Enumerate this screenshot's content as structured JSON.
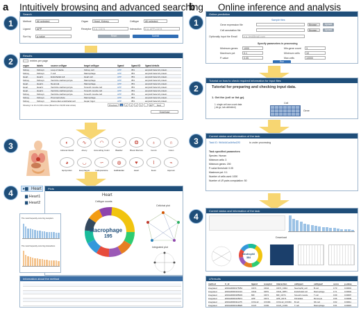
{
  "panels": {
    "a": {
      "letter": "a",
      "title": "Intuitively browsing and advanced searching"
    },
    "b": {
      "letter": "b",
      "title": "Online inference and analysis"
    }
  },
  "steps": [
    "1",
    "2",
    "3",
    "4"
  ],
  "colors": {
    "accent": "#1f4e79",
    "arrow": "#f7d672",
    "bars_blue": "#9cc2e5",
    "bars_orange": "#f4c38d",
    "submit": "#2f6db5"
  },
  "search": {
    "title": "Search",
    "fields": [
      {
        "label": "Method",
        "value": "All selected"
      },
      {
        "label": "Organ",
        "value": "Heart, Kidney"
      },
      {
        "label": "Celltype",
        "value": "All selected"
      },
      {
        "label": "Ligand",
        "value": "APP"
      },
      {
        "label": "Receptor",
        "value": "e.g. CD74"
      },
      {
        "label": "Interaction",
        "value": "e.g. APP-CD74"
      },
      {
        "label": "Sort by",
        "value": "p-value"
      }
    ],
    "reset_label": "Reset",
    "submit_label": "Submit"
  },
  "results": {
    "title": "Results",
    "entries_label": "entries per page",
    "headers": [
      "organ",
      "labels",
      "source celltype",
      "target celltype",
      "ligand",
      "ligand ID",
      "ligand details"
    ],
    "rows": [
      [
        "Kidney",
        "Kidney1",
        "Loop of Henle",
        "Kidney cell",
        "APP",
        "351",
        "amyloid beta A4 protein"
      ],
      [
        "Kidney",
        "Kidney1",
        "T cell",
        "Macrophage",
        "APP",
        "351",
        "amyloid beta A4 protein"
      ],
      [
        "Heart",
        "Heart1",
        "Endothelial cell",
        "Heart cell",
        "APP",
        "351",
        "amyloid beta A4 protein"
      ],
      [
        "Kidney",
        "Kidney1",
        "Ventricle cardiomyocyte",
        "Macrophage",
        "APP",
        "351",
        "amyloid beta A4 protein"
      ],
      [
        "Heart",
        "Heart1",
        "Neuronal",
        "Macrophage",
        "APP",
        "351",
        "amyloid beta A4 protein"
      ],
      [
        "Heart",
        "Heart1",
        "Ventricle cardiomyocyte",
        "Smooth muscle cell",
        "APP",
        "351",
        "amyloid beta A4 protein"
      ],
      [
        "Heart",
        "Heart1",
        "Ventricle cardiomyocyte",
        "Smooth muscle cell",
        "APP",
        "351",
        "amyloid beta A4 protein"
      ],
      [
        "Kidney",
        "Kidney1",
        "Ventricle cardiomyocyte",
        "Smooth muscle cell",
        "APP",
        "351",
        "amyloid beta A4 protein"
      ],
      [
        "Kidney",
        "Kidney1",
        "Proximal tubule",
        "Macrophage",
        "APP",
        "351",
        "amyloid beta A4 protein"
      ],
      [
        "Kidney",
        "Kidney1",
        "Glomerular endothelial cell",
        "Hepar Ingot",
        "APP",
        "351",
        "amyloid beta A4 protein"
      ]
    ],
    "footer": "Showing 1 to 10 of 2,016 entries (filtered from 19,000 total entries)",
    "pages": [
      "Previous",
      "1",
      "2",
      "3",
      "4",
      "5",
      "...",
      "46",
      "Next"
    ],
    "download_label": "Download"
  },
  "organs": [
    {
      "name": "Adrenal Gland",
      "icon": "◐"
    },
    {
      "name": "Artery",
      "icon": "∿"
    },
    {
      "name": "Ascending Colon",
      "icon": "◠"
    },
    {
      "name": "Bladder",
      "icon": "◔"
    },
    {
      "name": "Blood Marrow",
      "icon": "❂"
    },
    {
      "name": "Cervix",
      "icon": "♁"
    },
    {
      "name": "Colon",
      "icon": "∩"
    },
    {
      "name": "Epityrotian",
      "icon": "◕"
    },
    {
      "name": "Esophagus",
      "icon": "◡"
    },
    {
      "name": "Fallopiantube",
      "icon": "∽"
    },
    {
      "name": "Gallbladder",
      "icon": "◍"
    },
    {
      "name": "Heart",
      "icon": "♥"
    },
    {
      "name": "Ileum",
      "icon": "⌇"
    },
    {
      "name": "Jejunum",
      "icon": "⌁"
    }
  ],
  "tree": {
    "root": "Heart",
    "children": [
      "Heart1",
      "Heart2"
    ]
  },
  "plots": {
    "title": "Plots",
    "heading": "Heart",
    "donut_title": "Celltype counts",
    "donut_center": "Macrophage",
    "donut_value": "195",
    "cellchat_title": "Cellchat plot",
    "integrated_title": "Integrated plot",
    "bar1_title": "The most frequently occurring receptors",
    "bar2_title": "The most frequently occurring interactions",
    "bar1": [
      58,
      46,
      40,
      38,
      35,
      34,
      32,
      30,
      28,
      27,
      26,
      25,
      24,
      24,
      23,
      22
    ],
    "bar2": [
      62,
      44,
      39,
      36,
      33,
      31,
      30,
      28,
      27,
      25,
      24,
      23,
      22,
      21,
      21,
      20
    ],
    "table_title": "Information about the method"
  },
  "online": {
    "title": "Online prediction",
    "sample_file": "Sample files",
    "cell_expr_label": "Gene expression file",
    "cell_anno_label": "Cell annotation file",
    "browse_label": "Browse...",
    "upload_label": "Upload",
    "email_label": "Optionally input the Email",
    "email_placeholder": "e.g. test@mail.com",
    "params_title": "Specify parameters in processing",
    "params": [
      {
        "label": "Minimum genes",
        "value": "1000"
      },
      {
        "label": "Min.gene count",
        "value": "3"
      },
      {
        "label": "Maximum pct",
        "value": "0.1"
      },
      {
        "label": "Minimum cells",
        "value": "10"
      },
      {
        "label": "P-value",
        "value": "0.05"
      },
      {
        "label": "Max.cells",
        "value": "10000"
      }
    ],
    "run_label": "Run"
  },
  "tutorial": {
    "title": "Tutorial on how to check required information for input files",
    "heading": "Tutorial for preparing and checking input data.",
    "section": "1. Get the (cell or list gz).",
    "item": "1. single cell raw count data (.txt.gz, tab-delimited)",
    "cell_label": "Cell",
    "gene_label": "Gene"
  },
  "current": {
    "title": "Current status and information of the task",
    "task_label": "Task ID: 9b0d4d1a4b9a42f3",
    "status_label": "is under processing",
    "params_title": "Task specified parameters",
    "params": [
      "Species: Human",
      "Minimum cells: 3",
      "Minimum genes: 200",
      "P-value threshold: 0.05",
      "Maximum pct: 0.1",
      "Number of cells used: 1000",
      "Number of LR pairs computation: 50"
    ]
  },
  "current2": {
    "title": "Current status and information of the task",
    "download_label": "Download",
    "donut_center": "Neutrophil",
    "donut_value": "384"
  },
  "lrresults": {
    "title": "LRresults",
    "headers": [
      "method",
      "lr_id",
      "ligand",
      "receptor",
      "interaction",
      "celltype1",
      "celltype2",
      "score",
      "p-value"
    ],
    "rows": [
      [
        "integrated",
        "ENSG00000175354",
        "CD74",
        "CD44",
        "CD74_CD44",
        "Neutrophil_cell",
        "B cell",
        "0.73",
        "0.00001"
      ],
      [
        "integrated",
        "ENSG00000163131",
        "CD44",
        "SPP1",
        "CD44_SPP1",
        "Endothelial cell",
        "Macrophage",
        "0.71",
        "0.00004"
      ],
      [
        "integrated",
        "ENSG00000185033",
        "MIF",
        "CD74",
        "MIF_CD74",
        "Smooth muscle",
        "T cell",
        "0.69",
        "0.00007"
      ],
      [
        "integrated",
        "ENSG00000105974",
        "APP",
        "CD74",
        "APP_CD74",
        "Fibroblast",
        "Monocyte",
        "0.66",
        "0.00009"
      ],
      [
        "integrated",
        "ENSG00000111275",
        "CXCL12",
        "CXCR4",
        "CXCL12_CXCR4",
        "B cell",
        "NK cell",
        "0.62",
        "0.00011"
      ],
      [
        "integrated",
        "ENSG00000148926",
        "CCL5",
        "CCR1",
        "CCL5_CCR1",
        "T cell",
        "Macrophage",
        "0.61",
        "0.00015"
      ]
    ]
  }
}
